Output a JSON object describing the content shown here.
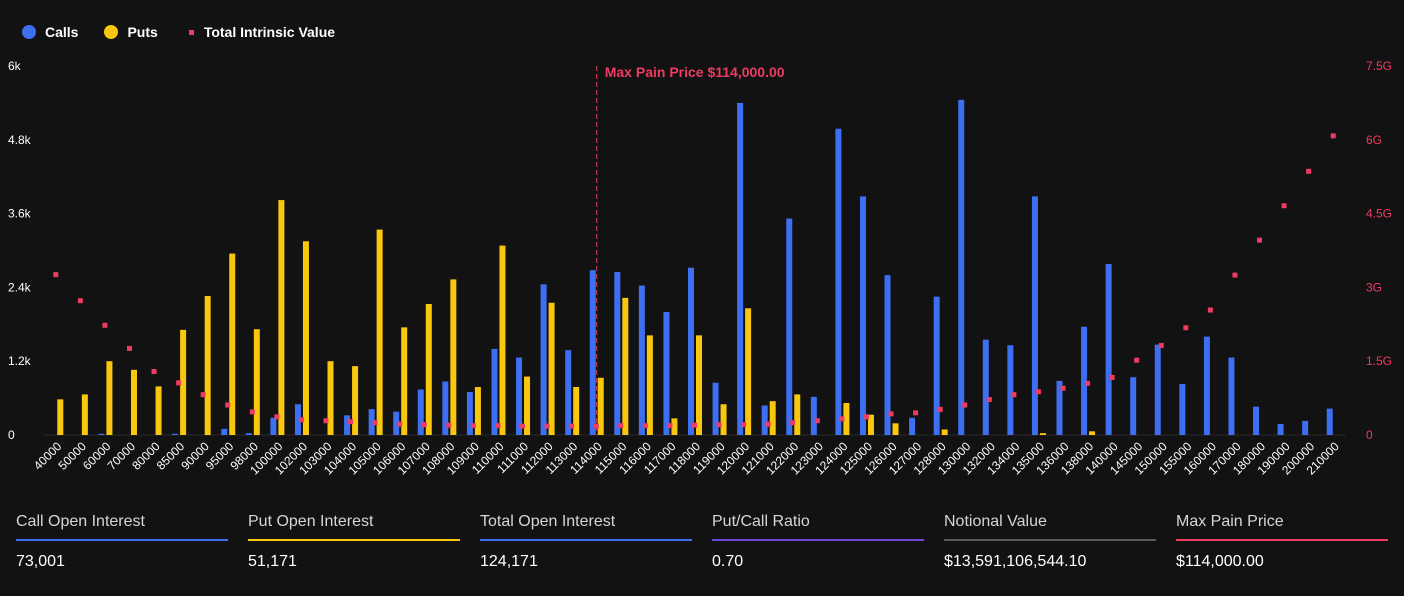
{
  "colors": {
    "calls": "#3d6ff0",
    "puts": "#f9c80e",
    "intrinsic": "#ee3b61",
    "background": "#121212",
    "axis_text": "#ffffff",
    "right_axis_text": "#ee3b61",
    "ratio_line": "#6e48d8",
    "notional_line": "#5a5a5a"
  },
  "legend": {
    "calls_label": "Calls",
    "puts_label": "Puts",
    "intrinsic_label": "Total Intrinsic Value"
  },
  "chart_data": {
    "type": "bar",
    "categories": [
      "40000",
      "50000",
      "60000",
      "70000",
      "80000",
      "85000",
      "90000",
      "95000",
      "98000",
      "100000",
      "102000",
      "103000",
      "104000",
      "105000",
      "106000",
      "107000",
      "108000",
      "109000",
      "110000",
      "111000",
      "112000",
      "113000",
      "114000",
      "115000",
      "116000",
      "117000",
      "118000",
      "119000",
      "120000",
      "121000",
      "122000",
      "123000",
      "124000",
      "125000",
      "126000",
      "127000",
      "128000",
      "130000",
      "132000",
      "134000",
      "135000",
      "136000",
      "138000",
      "140000",
      "145000",
      "150000",
      "155000",
      "160000",
      "170000",
      "180000",
      "190000",
      "200000",
      "210000"
    ],
    "series": [
      {
        "name": "Calls",
        "axis": "left",
        "type": "bar",
        "values": [
          0,
          0,
          20,
          0,
          0,
          20,
          0,
          100,
          30,
          280,
          500,
          0,
          320,
          420,
          380,
          740,
          870,
          700,
          1400,
          1260,
          2450,
          1380,
          2680,
          2650,
          2430,
          2000,
          2720,
          850,
          5400,
          480,
          3520,
          620,
          4980,
          3880,
          2600,
          280,
          2250,
          5450,
          1550,
          1460,
          3880,
          880,
          1760,
          2780,
          940,
          1470,
          830,
          1600,
          1260,
          460,
          180,
          230,
          430
        ]
      },
      {
        "name": "Puts",
        "axis": "left",
        "type": "bar",
        "values": [
          580,
          660,
          1200,
          1060,
          790,
          1710,
          2260,
          2950,
          1720,
          3820,
          3150,
          1200,
          1120,
          3340,
          1750,
          2130,
          2530,
          780,
          3080,
          950,
          2150,
          780,
          930,
          2230,
          1620,
          270,
          1620,
          500,
          2060,
          550,
          660,
          0,
          520,
          330,
          190,
          0,
          90,
          0,
          0,
          0,
          30,
          0,
          60,
          0,
          0,
          0,
          0,
          0,
          0,
          0,
          0,
          0,
          0
        ]
      },
      {
        "name": "Total Intrinsic Value",
        "axis": "right",
        "type": "scatter",
        "values": [
          3.26,
          2.73,
          2.23,
          1.76,
          1.29,
          1.06,
          0.82,
          0.61,
          0.47,
          0.37,
          0.31,
          0.29,
          0.27,
          0.25,
          0.22,
          0.21,
          0.2,
          0.19,
          0.19,
          0.18,
          0.18,
          0.18,
          0.18,
          0.19,
          0.19,
          0.19,
          0.2,
          0.21,
          0.21,
          0.22,
          0.25,
          0.29,
          0.33,
          0.37,
          0.43,
          0.45,
          0.52,
          0.61,
          0.72,
          0.82,
          0.88,
          0.95,
          1.05,
          1.17,
          1.52,
          1.82,
          2.18,
          2.54,
          3.25,
          3.96,
          4.66,
          5.36,
          6.08
        ]
      }
    ],
    "y_left": {
      "min": 0,
      "max": 6000,
      "ticks": [
        0,
        1200,
        2400,
        3600,
        4800,
        6000
      ],
      "tick_labels": [
        "0",
        "1.2k",
        "2.4k",
        "3.6k",
        "4.8k",
        "6k"
      ]
    },
    "y_right": {
      "min": 0,
      "max": 7.5,
      "ticks": [
        0,
        1.5,
        3,
        4.5,
        6,
        7.5
      ],
      "tick_labels": [
        "0",
        "1.5G",
        "3G",
        "4.5G",
        "6G",
        "7.5G"
      ]
    },
    "max_pain": {
      "strike": "114000",
      "label": "Max Pain Price $114,000.00"
    }
  },
  "stats": [
    {
      "label": "Call Open Interest",
      "value": "73,001",
      "color": "#3d6ff0"
    },
    {
      "label": "Put Open Interest",
      "value": "51,171",
      "color": "#f9c80e"
    },
    {
      "label": "Total Open Interest",
      "value": "124,171",
      "color": "#3d6ff0"
    },
    {
      "label": "Put/Call Ratio",
      "value": "0.70",
      "color": "#6e48d8"
    },
    {
      "label": "Notional Value",
      "value": "$13,591,106,544.10",
      "color": "#5a5a5a"
    },
    {
      "label": "Max Pain Price",
      "value": "$114,000.00",
      "color": "#ee3b61"
    }
  ]
}
